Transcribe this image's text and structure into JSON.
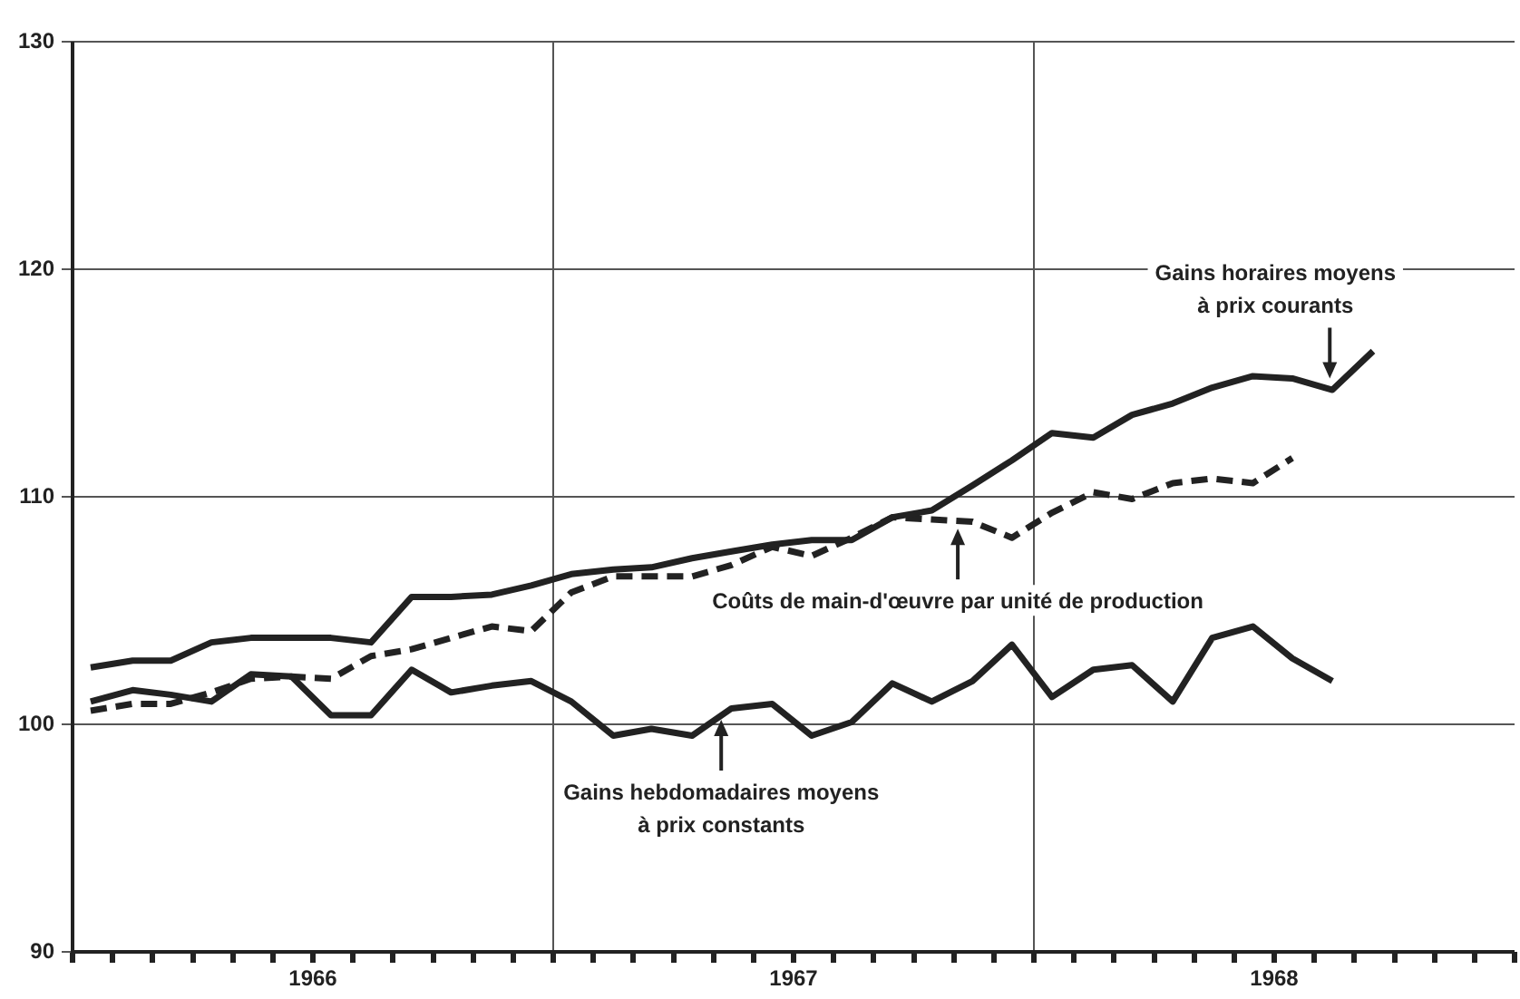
{
  "chart_data": {
    "type": "line",
    "xlim": [
      "1966-01-01",
      "1969-01-01"
    ],
    "ylim": [
      90,
      130
    ],
    "xticks": [
      {
        "value": "1966-01-01",
        "label": null
      },
      {
        "value": "1966-02-01",
        "label": null
      },
      {
        "value": "1966-03-01",
        "label": null
      },
      {
        "value": "1966-04-01",
        "label": null
      },
      {
        "value": "1966-05-01",
        "label": null
      },
      {
        "value": "1966-06-01",
        "label": null
      },
      {
        "value": "1966-07-01",
        "label": "1966"
      },
      {
        "value": "1966-08-01",
        "label": null
      },
      {
        "value": "1966-09-01",
        "label": null
      },
      {
        "value": "1966-10-01",
        "label": null
      },
      {
        "value": "1966-11-01",
        "label": null
      },
      {
        "value": "1966-12-01",
        "label": null
      },
      {
        "value": "1967-01-01",
        "label": null
      },
      {
        "value": "1967-02-01",
        "label": null
      },
      {
        "value": "1967-03-01",
        "label": null
      },
      {
        "value": "1967-04-01",
        "label": null
      },
      {
        "value": "1967-05-01",
        "label": null
      },
      {
        "value": "1967-06-01",
        "label": null
      },
      {
        "value": "1967-07-01",
        "label": "1967"
      },
      {
        "value": "1967-08-01",
        "label": null
      },
      {
        "value": "1967-09-01",
        "label": null
      },
      {
        "value": "1967-10-01",
        "label": null
      },
      {
        "value": "1967-11-01",
        "label": null
      },
      {
        "value": "1967-12-01",
        "label": null
      },
      {
        "value": "1968-01-01",
        "label": null
      },
      {
        "value": "1968-02-01",
        "label": null
      },
      {
        "value": "1968-03-01",
        "label": null
      },
      {
        "value": "1968-04-01",
        "label": null
      },
      {
        "value": "1968-05-01",
        "label": null
      },
      {
        "value": "1968-06-01",
        "label": null
      },
      {
        "value": "1968-07-01",
        "label": "1968"
      },
      {
        "value": "1968-08-01",
        "label": null
      },
      {
        "value": "1968-09-01",
        "label": null
      },
      {
        "value": "1968-10-01",
        "label": null
      },
      {
        "value": "1968-11-01",
        "label": null
      },
      {
        "value": "1968-12-01",
        "label": null
      },
      {
        "value": "1969-01-01",
        "label": null
      }
    ],
    "yticks": [
      90,
      100,
      110,
      120,
      130
    ],
    "grid": "y",
    "legend": false,
    "marker": "none",
    "ref_lines": [
      {
        "axis": "x",
        "value": "1967-01-01"
      },
      {
        "axis": "x",
        "value": "1968-01-01"
      }
    ],
    "x": [
      "1966-01-15",
      "1966-02-15",
      "1966-03-15",
      "1966-04-15",
      "1966-05-15",
      "1966-06-15",
      "1966-07-15",
      "1966-08-15",
      "1966-09-15",
      "1966-10-15",
      "1966-11-15",
      "1966-12-15",
      "1967-01-15",
      "1967-02-15",
      "1967-03-15",
      "1967-04-15",
      "1967-05-15",
      "1967-06-15",
      "1967-07-15",
      "1967-08-15",
      "1967-09-15",
      "1967-10-15",
      "1967-11-15",
      "1967-12-15",
      "1968-01-15",
      "1968-02-15",
      "1968-03-15",
      "1968-04-15",
      "1968-05-15",
      "1968-06-15",
      "1968-07-15",
      "1968-08-15",
      "1968-09-15"
    ],
    "series": [
      {
        "color": "#222222",
        "line_style": "solid",
        "values": [
          102.5,
          102.8,
          102.8,
          103.6,
          103.8,
          103.8,
          103.8,
          103.6,
          105.6,
          105.6,
          105.7,
          106.1,
          106.6,
          106.8,
          106.9,
          107.3,
          107.6,
          107.9,
          108.1,
          108.1,
          109.1,
          109.4,
          110.5,
          111.6,
          112.8,
          112.6,
          113.6,
          114.1,
          114.8,
          115.3,
          115.2,
          114.7,
          116.4
        ]
      },
      {
        "color": "#222222",
        "line_style": "dashed",
        "values": [
          100.6,
          100.9,
          100.9,
          101.4,
          102.0,
          102.1,
          102.0,
          103.0,
          103.3,
          103.8,
          104.3,
          104.1,
          105.8,
          106.5,
          106.5,
          106.5,
          107.0,
          107.8,
          107.4,
          108.2,
          109.1,
          109.0,
          108.9,
          108.2,
          109.3,
          110.2,
          109.9,
          110.6,
          110.8,
          110.6,
          111.7,
          null,
          null
        ]
      },
      {
        "color": "#222222",
        "line_style": "solid",
        "values": [
          101.0,
          101.5,
          101.3,
          101.0,
          102.2,
          102.1,
          100.4,
          100.4,
          102.4,
          101.4,
          101.7,
          101.9,
          101.0,
          99.5,
          99.8,
          99.5,
          100.7,
          100.9,
          99.5,
          100.1,
          101.8,
          101.0,
          101.9,
          103.5,
          101.2,
          102.4,
          102.6,
          101.0,
          103.8,
          104.3,
          102.9,
          101.9,
          null
        ]
      }
    ],
    "annotations": [
      {
        "text": "Gains horaires moyens\nà prix courants",
        "x": "1968-08-13",
        "y": 115.2
      },
      {
        "text": "Coûts de main-d'œuvre par unité de production",
        "x": "1967-11-04",
        "y": 108.6
      },
      {
        "text": "Gains hebdomadaires moyens\nà prix constants",
        "x": "1967-05-07",
        "y": 100.2
      }
    ]
  }
}
